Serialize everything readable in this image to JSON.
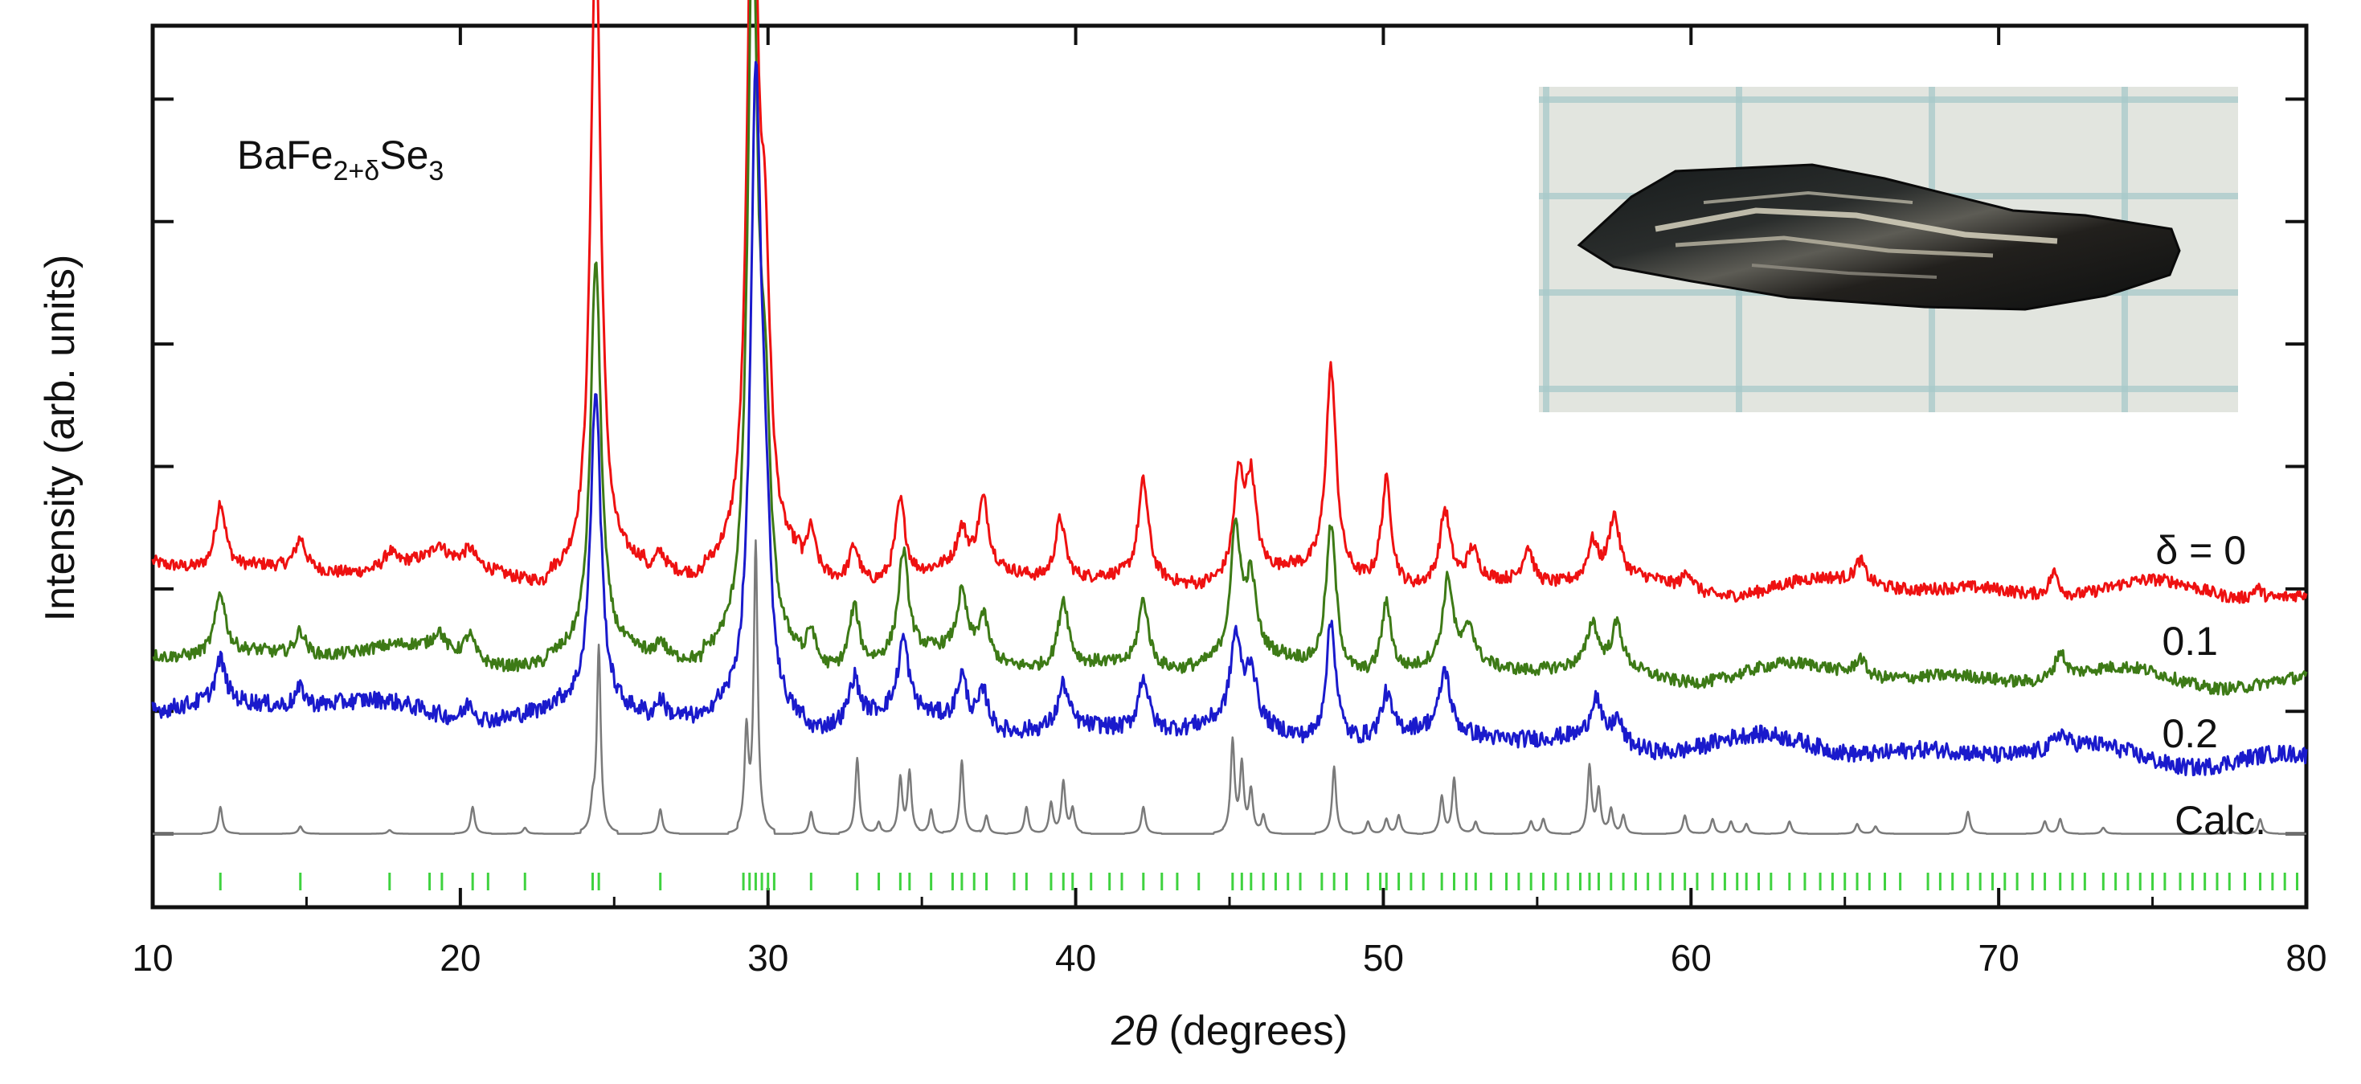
{
  "chart_data": {
    "type": "line",
    "title": "",
    "compound": {
      "base": "BaFe",
      "sub1": "2+δ",
      "mid": "Se",
      "sub2": "3"
    },
    "xlabel": {
      "symbol": "2θ",
      "rest": " (degrees)"
    },
    "ylabel": "Intensity (arb. units)",
    "xlim": [
      10,
      80
    ],
    "ylim": [
      -0.6,
      6.6
    ],
    "xticks": [
      10,
      20,
      30,
      40,
      50,
      60,
      70,
      80
    ],
    "grid": false,
    "inset": "photo of a BaFe2+δSe3 crystal on grid paper (top-right)",
    "colors": {
      "d0": "#ee1111",
      "d01": "#3d7a16",
      "d02": "#1a1acc",
      "calc": "#7a7a7a",
      "marks": "#3fd23f"
    },
    "series": [
      {
        "name": "δ = 0",
        "label": "δ = 0",
        "color": "#ee1111",
        "offset": 2.2,
        "slope": 0.0033,
        "noise": 0.05,
        "peaks": [
          [
            12.2,
            0.55
          ],
          [
            14.8,
            0.25
          ],
          [
            17.7,
            0.12
          ],
          [
            19.3,
            0.12
          ],
          [
            20.3,
            0.12
          ],
          [
            24.4,
            5.3
          ],
          [
            26.5,
            0.15
          ],
          [
            29.5,
            6.2
          ],
          [
            29.9,
            2.0
          ],
          [
            31.4,
            0.35
          ],
          [
            32.8,
            0.3
          ],
          [
            34.3,
            0.65
          ],
          [
            36.3,
            0.3
          ],
          [
            37.0,
            0.55
          ],
          [
            39.5,
            0.5
          ],
          [
            42.2,
            0.8
          ],
          [
            45.3,
            0.8
          ],
          [
            45.7,
            0.75
          ],
          [
            48.3,
            1.7
          ],
          [
            50.1,
            0.9
          ],
          [
            52.0,
            0.6
          ],
          [
            52.9,
            0.25
          ],
          [
            54.7,
            0.3
          ],
          [
            56.8,
            0.3
          ],
          [
            57.5,
            0.5
          ],
          [
            59.9,
            0.15
          ],
          [
            65.5,
            0.18
          ],
          [
            71.8,
            0.2
          ],
          [
            78.4,
            0.1
          ]
        ]
      },
      {
        "name": "0.1",
        "label": "0.1",
        "color": "#3d7a16",
        "offset": 1.5,
        "slope": 0.0035,
        "noise": 0.05,
        "peaks": [
          [
            12.2,
            0.5
          ],
          [
            14.8,
            0.2
          ],
          [
            19.3,
            0.15
          ],
          [
            20.3,
            0.2
          ],
          [
            24.4,
            3.2
          ],
          [
            26.5,
            0.15
          ],
          [
            29.5,
            5.8
          ],
          [
            29.9,
            1.6
          ],
          [
            31.4,
            0.3
          ],
          [
            32.8,
            0.5
          ],
          [
            34.4,
            0.85
          ],
          [
            36.3,
            0.5
          ],
          [
            37.0,
            0.35
          ],
          [
            39.6,
            0.55
          ],
          [
            42.2,
            0.55
          ],
          [
            45.2,
            1.05
          ],
          [
            45.7,
            0.6
          ],
          [
            48.3,
            1.2
          ],
          [
            50.1,
            0.6
          ],
          [
            52.1,
            0.7
          ],
          [
            52.8,
            0.3
          ],
          [
            56.8,
            0.35
          ],
          [
            57.6,
            0.35
          ],
          [
            65.5,
            0.15
          ],
          [
            72.0,
            0.22
          ]
        ]
      },
      {
        "name": "0.2",
        "label": "0.2",
        "color": "#1a1acc",
        "offset": 1.08,
        "slope": 0.0068,
        "noise": 0.07,
        "peaks": [
          [
            12.2,
            0.35
          ],
          [
            14.8,
            0.15
          ],
          [
            20.3,
            0.15
          ],
          [
            24.4,
            2.6
          ],
          [
            26.5,
            0.15
          ],
          [
            29.6,
            5.0
          ],
          [
            29.9,
            1.2
          ],
          [
            32.8,
            0.35
          ],
          [
            34.4,
            0.6
          ],
          [
            36.3,
            0.4
          ],
          [
            37.0,
            0.3
          ],
          [
            39.6,
            0.35
          ],
          [
            42.2,
            0.45
          ],
          [
            45.2,
            0.7
          ],
          [
            45.7,
            0.45
          ],
          [
            48.3,
            1.0
          ],
          [
            50.1,
            0.35
          ],
          [
            52.0,
            0.5
          ],
          [
            56.9,
            0.35
          ],
          [
            57.6,
            0.2
          ],
          [
            72.0,
            0.12
          ]
        ]
      },
      {
        "name": "Calc.",
        "label": "Calc.",
        "color": "#7a7a7a",
        "offset": 0.0,
        "slope": 0.0,
        "noise": 0.0,
        "peaks": [
          [
            12.2,
            0.22
          ],
          [
            14.8,
            0.06
          ],
          [
            17.7,
            0.03
          ],
          [
            20.4,
            0.22
          ],
          [
            22.1,
            0.05
          ],
          [
            24.3,
            0.2
          ],
          [
            24.5,
            1.52
          ],
          [
            26.5,
            0.2
          ],
          [
            29.3,
            0.8
          ],
          [
            29.6,
            2.35
          ],
          [
            31.4,
            0.18
          ],
          [
            32.9,
            0.62
          ],
          [
            33.6,
            0.1
          ],
          [
            34.3,
            0.45
          ],
          [
            34.6,
            0.5
          ],
          [
            35.3,
            0.2
          ],
          [
            36.3,
            0.6
          ],
          [
            37.1,
            0.15
          ],
          [
            38.4,
            0.22
          ],
          [
            39.2,
            0.25
          ],
          [
            39.6,
            0.42
          ],
          [
            39.9,
            0.2
          ],
          [
            42.2,
            0.22
          ],
          [
            45.1,
            0.75
          ],
          [
            45.4,
            0.55
          ],
          [
            45.7,
            0.35
          ],
          [
            46.1,
            0.15
          ],
          [
            48.4,
            0.55
          ],
          [
            49.5,
            0.1
          ],
          [
            50.1,
            0.12
          ],
          [
            50.5,
            0.15
          ],
          [
            51.9,
            0.3
          ],
          [
            52.3,
            0.45
          ],
          [
            53.0,
            0.1
          ],
          [
            54.8,
            0.1
          ],
          [
            55.2,
            0.12
          ],
          [
            56.7,
            0.55
          ],
          [
            57.0,
            0.35
          ],
          [
            57.4,
            0.2
          ],
          [
            57.8,
            0.15
          ],
          [
            59.8,
            0.15
          ],
          [
            60.7,
            0.12
          ],
          [
            61.3,
            0.1
          ],
          [
            61.8,
            0.08
          ],
          [
            63.2,
            0.1
          ],
          [
            65.4,
            0.08
          ],
          [
            66.0,
            0.06
          ],
          [
            69.0,
            0.18
          ],
          [
            71.5,
            0.1
          ],
          [
            72.0,
            0.12
          ],
          [
            73.4,
            0.05
          ],
          [
            77.5,
            0.05
          ],
          [
            78.5,
            0.12
          ]
        ]
      }
    ],
    "reflection_marks": [
      12.2,
      14.8,
      17.7,
      19.0,
      19.4,
      20.4,
      20.9,
      22.1,
      24.3,
      24.5,
      26.5,
      29.2,
      29.4,
      29.6,
      29.8,
      30.0,
      30.2,
      31.4,
      32.9,
      33.6,
      34.3,
      34.6,
      35.3,
      36.0,
      36.3,
      36.7,
      37.1,
      38.0,
      38.4,
      39.2,
      39.6,
      39.9,
      40.5,
      41.1,
      41.5,
      42.2,
      42.8,
      43.3,
      44.0,
      45.1,
      45.4,
      45.7,
      46.1,
      46.5,
      46.9,
      47.3,
      48.0,
      48.4,
      48.8,
      49.5,
      49.9,
      50.1,
      50.5,
      50.9,
      51.3,
      51.9,
      52.3,
      52.7,
      53.0,
      53.5,
      54.0,
      54.4,
      54.8,
      55.2,
      55.6,
      56.0,
      56.4,
      56.7,
      57.0,
      57.4,
      57.8,
      58.2,
      58.6,
      59.0,
      59.4,
      59.8,
      60.2,
      60.7,
      61.1,
      61.5,
      61.8,
      62.2,
      62.6,
      63.2,
      63.7,
      64.2,
      64.6,
      65.0,
      65.4,
      65.8,
      66.3,
      66.8,
      67.7,
      68.1,
      68.5,
      69.0,
      69.4,
      69.8,
      70.2,
      70.6,
      71.1,
      71.5,
      72.0,
      72.4,
      72.8,
      73.4,
      73.8,
      74.2,
      74.6,
      75.0,
      75.4,
      75.9,
      76.3,
      76.7,
      77.1,
      77.5,
      78.0,
      78.5,
      78.9,
      79.3,
      79.7
    ]
  }
}
